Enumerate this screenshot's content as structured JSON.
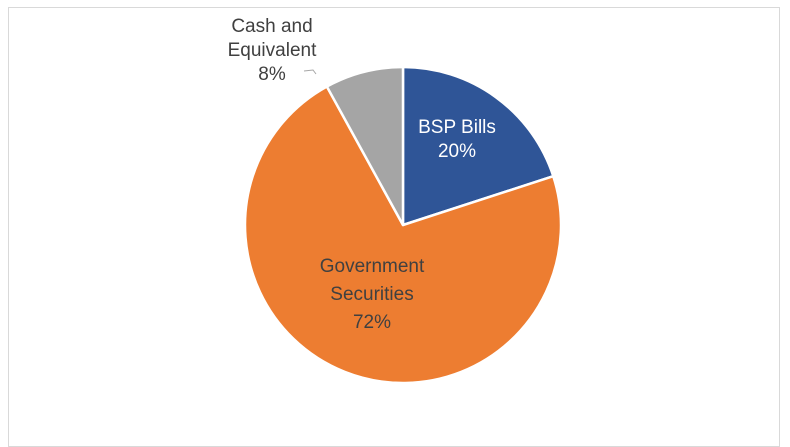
{
  "chart_data": {
    "type": "pie",
    "title": "",
    "slices": [
      {
        "label_lines": [
          "BSP Bills"
        ],
        "pct_text": "20%",
        "value": 20,
        "color": "#2f5597",
        "text_color": "#ffffff"
      },
      {
        "label_lines": [
          "Government",
          "Securities"
        ],
        "pct_text": "72%",
        "value": 72,
        "color": "#ed7d31",
        "text_color": "#404040"
      },
      {
        "label_lines": [
          "Cash and",
          "Equivalent"
        ],
        "pct_text": "8%",
        "value": 8,
        "color": "#a5a5a5",
        "text_color": "#404040"
      }
    ],
    "start_angle_deg": 0,
    "direction": "clockwise",
    "legend": "none",
    "slice_border_color": "#ffffff"
  }
}
